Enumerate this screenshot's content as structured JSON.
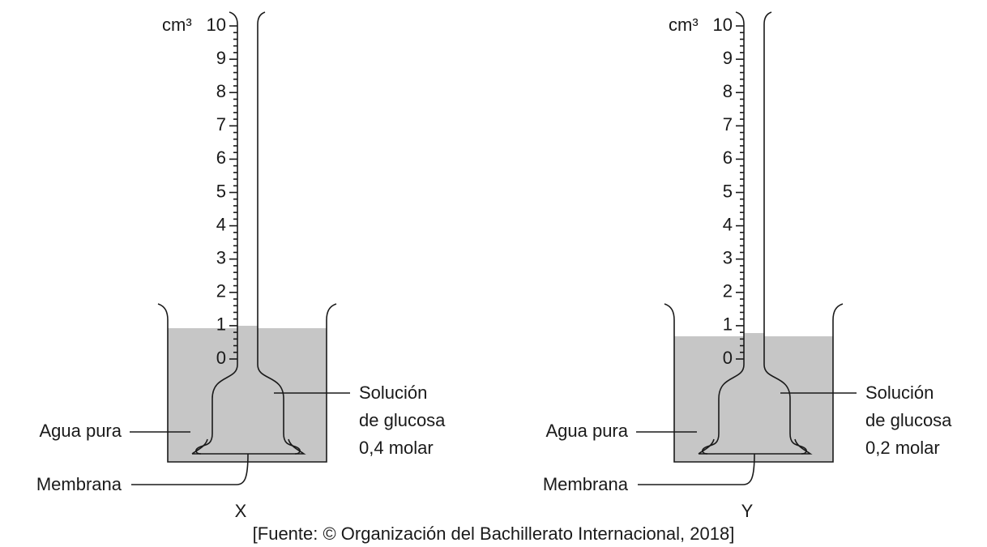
{
  "apparatus": [
    {
      "name": "X",
      "unit": "cm³",
      "scale": [
        0,
        1,
        2,
        3,
        4,
        5,
        6,
        7,
        8,
        9,
        10
      ],
      "solution": [
        "Solución",
        "de glucosa",
        "0,4 molar"
      ],
      "water": "Agua pura",
      "membrane": "Membrana"
    },
    {
      "name": "Y",
      "unit": "cm³",
      "scale": [
        0,
        1,
        2,
        3,
        4,
        5,
        6,
        7,
        8,
        9,
        10
      ],
      "solution": [
        "Solución",
        "de glucosa",
        "0,2 molar"
      ],
      "water": "Agua pura",
      "membrane": "Membrana"
    }
  ],
  "caption": "[Fuente: © Organización del Bachillerato Internacional, 2018]"
}
